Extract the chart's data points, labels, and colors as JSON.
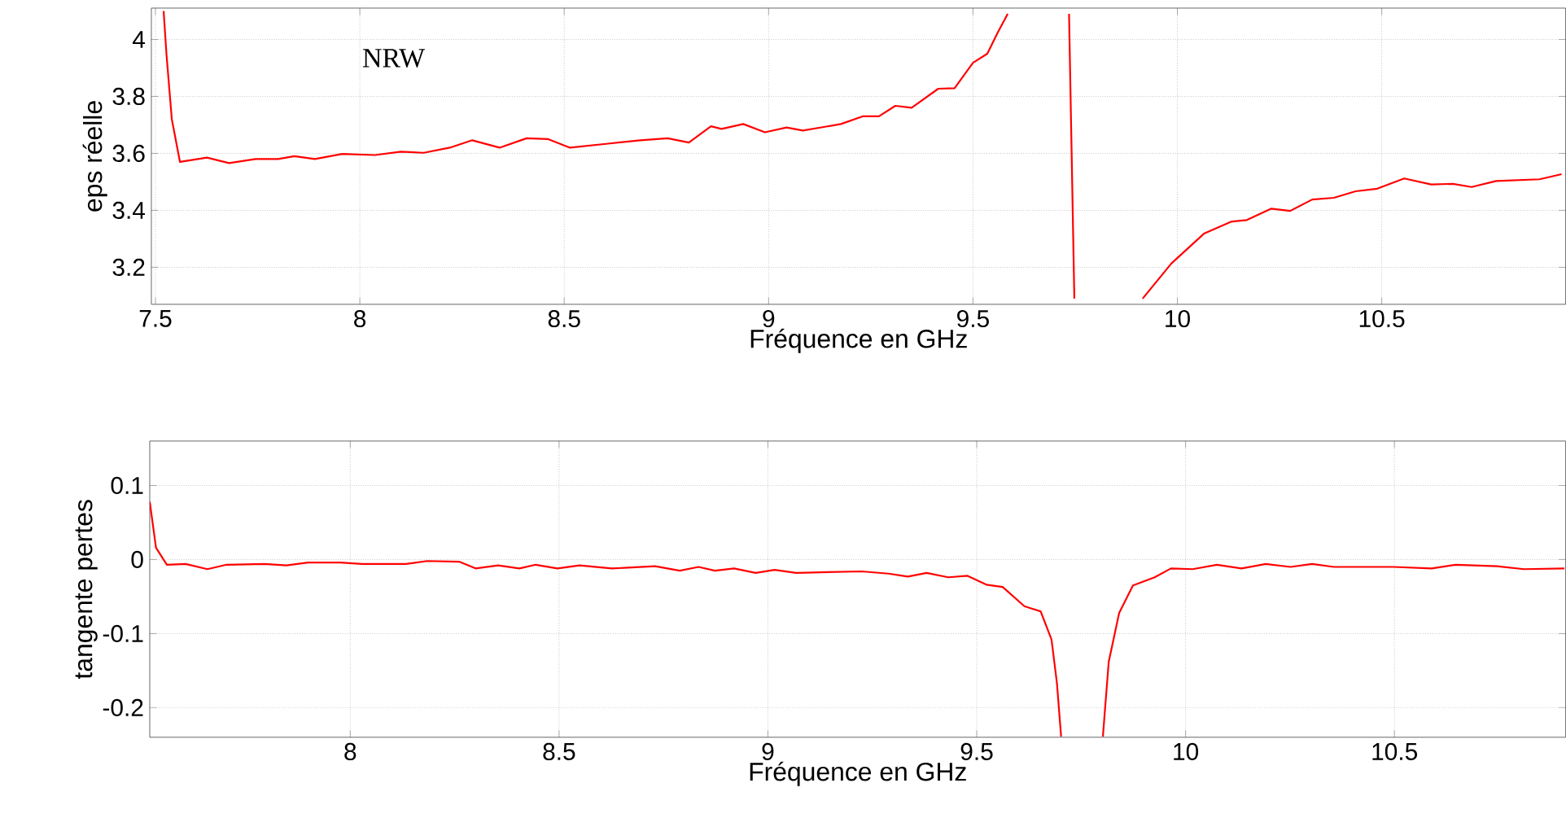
{
  "chart_data": [
    {
      "type": "line",
      "xlabel": "Fréquence en GHz",
      "ylabel": "eps réelle",
      "annotations": [
        "NRW"
      ],
      "xlim": [
        7.49,
        10.95
      ],
      "ylim": [
        3.07,
        4.11
      ],
      "xticks": [
        7.5,
        8,
        8.5,
        9,
        9.5,
        10,
        10.5
      ],
      "yticks": [
        3.2,
        3.4,
        3.6,
        3.8,
        4
      ],
      "grid": true,
      "series": [
        {
          "color": "#ff0000",
          "x": [
            7.52,
            7.527,
            7.54,
            7.56,
            7.626,
            7.68,
            7.745,
            7.8,
            7.84,
            7.89,
            7.957,
            8.037,
            8.1,
            8.156,
            8.22,
            8.275,
            8.342,
            8.408,
            8.461,
            8.514,
            8.607,
            8.686,
            8.753,
            8.805,
            8.859,
            8.885,
            8.938,
            8.991,
            9.044,
            9.084,
            9.177,
            9.23,
            9.27,
            9.31,
            9.35,
            9.415,
            9.455,
            9.5,
            9.535,
            9.56,
            9.585,
            9.66,
            9.735,
            9.748,
            9.85,
            9.915,
            9.985,
            10.065,
            10.131,
            10.17,
            10.23,
            10.276,
            10.33,
            10.383,
            10.436,
            10.489,
            10.555,
            10.621,
            10.674,
            10.72,
            10.78,
            10.886,
            10.94
          ],
          "values": [
            4.1,
            3.947,
            3.72,
            3.57,
            3.585,
            3.566,
            3.58,
            3.58,
            3.59,
            3.58,
            3.598,
            3.594,
            3.606,
            3.602,
            3.62,
            3.646,
            3.62,
            3.653,
            3.65,
            3.62,
            3.634,
            3.646,
            3.653,
            3.638,
            3.695,
            3.686,
            3.703,
            3.674,
            3.691,
            3.68,
            3.703,
            3.73,
            3.73,
            3.767,
            3.76,
            3.827,
            3.829,
            3.918,
            3.95,
            4.023,
            4.09,
            null,
            4.09,
            3.09,
            null,
            3.09,
            3.213,
            3.318,
            3.36,
            3.366,
            3.406,
            3.398,
            3.438,
            3.444,
            3.467,
            3.476,
            3.512,
            3.491,
            3.493,
            3.482,
            3.503,
            3.509,
            3.527
          ]
        }
      ]
    },
    {
      "type": "line",
      "xlabel": "Fréquence en GHz",
      "ylabel": "tangente pertes",
      "xlim": [
        7.52,
        10.91
      ],
      "ylim": [
        -0.24,
        0.16
      ],
      "xticks": [
        8,
        8.5,
        9,
        9.5,
        10,
        10.5
      ],
      "yticks": [
        -0.2,
        -0.1,
        0,
        0.1
      ],
      "grid": true,
      "series": [
        {
          "color": "#ff0000",
          "x": [
            7.52,
            7.535,
            7.561,
            7.606,
            7.658,
            7.704,
            7.795,
            7.847,
            7.899,
            7.977,
            8.028,
            8.133,
            8.184,
            8.262,
            8.3,
            8.354,
            8.405,
            8.444,
            8.496,
            8.549,
            8.627,
            8.73,
            8.789,
            8.834,
            8.873,
            8.919,
            8.971,
            9.016,
            9.068,
            9.224,
            9.289,
            9.335,
            9.38,
            9.432,
            9.478,
            9.523,
            9.562,
            9.614,
            9.653,
            9.679,
            9.692,
            9.702,
            9.75,
            9.802,
            9.816,
            9.841,
            9.874,
            9.926,
            9.965,
            10.017,
            10.075,
            10.134,
            10.192,
            10.251,
            10.303,
            10.355,
            10.498,
            10.589,
            10.647,
            10.745,
            10.81,
            10.907
          ],
          "values": [
            0.078,
            0.016,
            -0.007,
            -0.006,
            -0.013,
            -0.007,
            -0.006,
            -0.008,
            -0.004,
            -0.004,
            -0.006,
            -0.006,
            -0.002,
            -0.003,
            -0.012,
            -0.008,
            -0.012,
            -0.007,
            -0.012,
            -0.008,
            -0.012,
            -0.009,
            -0.015,
            -0.01,
            -0.015,
            -0.012,
            -0.018,
            -0.014,
            -0.018,
            -0.016,
            -0.019,
            -0.023,
            -0.018,
            -0.024,
            -0.022,
            -0.034,
            -0.037,
            -0.063,
            -0.07,
            -0.108,
            -0.167,
            -0.239,
            null,
            -0.239,
            -0.138,
            -0.072,
            -0.035,
            -0.024,
            -0.012,
            -0.013,
            -0.007,
            -0.012,
            -0.006,
            -0.01,
            -0.006,
            -0.01,
            -0.01,
            -0.012,
            -0.007,
            -0.009,
            -0.013,
            -0.012
          ]
        }
      ]
    }
  ]
}
